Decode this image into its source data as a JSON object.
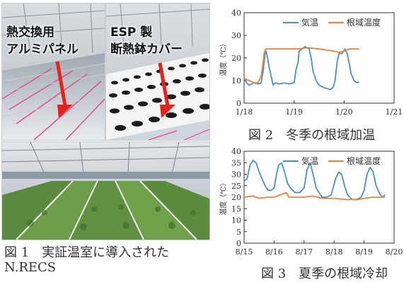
{
  "photos": {
    "panel_label_line1": "熱交換用",
    "panel_label_line2": "アルミパネル",
    "cover_label_line1": "ESP 製",
    "cover_label_line2": "断熱鉢カバー"
  },
  "captions": {
    "fig1_line1": "図 1　実証温室に導入された",
    "fig1_line2": "N.RECS",
    "fig2": "図 2　冬季の根域加温",
    "fig3": "図 3　夏季の根域冷却"
  },
  "chart_data": [
    {
      "id": "winter",
      "type": "line",
      "ylabel": "温度（℃）",
      "ylim": [
        0,
        40
      ],
      "yticks": [
        0,
        10,
        20,
        30,
        40
      ],
      "xlim": [
        0,
        3
      ],
      "xticks": [
        {
          "x": 0,
          "label": "1/18"
        },
        {
          "x": 1,
          "label": "1/19"
        },
        {
          "x": 2,
          "label": "1/20"
        },
        {
          "x": 3,
          "label": "1/21"
        }
      ],
      "legend": "top",
      "series": [
        {
          "name": "気温",
          "color": "#4a90c8",
          "points": [
            [
              0,
              11
            ],
            [
              0.05,
              9
            ],
            [
              0.1,
              8
            ],
            [
              0.2,
              9
            ],
            [
              0.28,
              8.5
            ],
            [
              0.34,
              9
            ],
            [
              0.38,
              14
            ],
            [
              0.42,
              22
            ],
            [
              0.44,
              23
            ],
            [
              0.47,
              20
            ],
            [
              0.5,
              16
            ],
            [
              0.54,
              12
            ],
            [
              0.58,
              8
            ],
            [
              0.62,
              9
            ],
            [
              0.7,
              8.5
            ],
            [
              0.8,
              9
            ],
            [
              0.9,
              8.5
            ],
            [
              0.98,
              9
            ],
            [
              1.0,
              9
            ],
            [
              1.04,
              15
            ],
            [
              1.08,
              18
            ],
            [
              1.1,
              23
            ],
            [
              1.16,
              24
            ],
            [
              1.22,
              25
            ],
            [
              1.3,
              24
            ],
            [
              1.34,
              20
            ],
            [
              1.38,
              14
            ],
            [
              1.44,
              10
            ],
            [
              1.5,
              8
            ],
            [
              1.58,
              7
            ],
            [
              1.66,
              6.5
            ],
            [
              1.72,
              6
            ],
            [
              1.78,
              7
            ],
            [
              1.82,
              10
            ],
            [
              1.86,
              18
            ],
            [
              1.9,
              22
            ],
            [
              1.96,
              22
            ],
            [
              2.02,
              24
            ],
            [
              2.06,
              22
            ],
            [
              2.1,
              18
            ],
            [
              2.14,
              13
            ],
            [
              2.2,
              10
            ],
            [
              2.26,
              9
            ],
            [
              2.3,
              9.5
            ]
          ]
        },
        {
          "name": "根域温度",
          "color": "#e8843c",
          "points": [
            [
              0,
              11
            ],
            [
              0.1,
              10
            ],
            [
              0.2,
              9
            ],
            [
              0.28,
              9
            ],
            [
              0.34,
              12
            ],
            [
              0.38,
              18
            ],
            [
              0.4,
              22
            ],
            [
              0.43,
              24
            ],
            [
              0.6,
              24
            ],
            [
              0.9,
              24
            ],
            [
              1.1,
              24
            ],
            [
              1.25,
              24.5
            ],
            [
              1.5,
              24
            ],
            [
              1.8,
              23
            ],
            [
              1.9,
              22.5
            ],
            [
              2.0,
              23
            ],
            [
              2.1,
              24
            ],
            [
              2.3,
              24
            ]
          ]
        }
      ]
    },
    {
      "id": "summer",
      "type": "line",
      "ylabel": "温度（℃）",
      "ylim": [
        0,
        40
      ],
      "yticks": [
        0,
        5,
        10,
        15,
        20,
        25,
        30,
        35,
        40
      ],
      "xlim": [
        0,
        5
      ],
      "xticks": [
        {
          "x": 0,
          "label": "8/15"
        },
        {
          "x": 1,
          "label": "8/16"
        },
        {
          "x": 2,
          "label": "8/17"
        },
        {
          "x": 3,
          "label": "8/18"
        },
        {
          "x": 4,
          "label": "8/19"
        },
        {
          "x": 5,
          "label": "8/20"
        }
      ],
      "legend": "top",
      "series": [
        {
          "name": "気温",
          "color": "#4a90c8",
          "points": [
            [
              0,
              27
            ],
            [
              0.1,
              28
            ],
            [
              0.2,
              34
            ],
            [
              0.3,
              36
            ],
            [
              0.4,
              35
            ],
            [
              0.5,
              31
            ],
            [
              0.6,
              28
            ],
            [
              0.7,
              25
            ],
            [
              0.8,
              23
            ],
            [
              0.9,
              23
            ],
            [
              1.0,
              24
            ],
            [
              1.08,
              30
            ],
            [
              1.15,
              34
            ],
            [
              1.25,
              35
            ],
            [
              1.35,
              31
            ],
            [
              1.45,
              26
            ],
            [
              1.55,
              24
            ],
            [
              1.7,
              22
            ],
            [
              1.85,
              22
            ],
            [
              2.0,
              24
            ],
            [
              2.1,
              32
            ],
            [
              2.2,
              35
            ],
            [
              2.3,
              30
            ],
            [
              2.4,
              24
            ],
            [
              2.5,
              22
            ],
            [
              2.6,
              20
            ],
            [
              2.75,
              20
            ],
            [
              2.9,
              21
            ],
            [
              3.05,
              28
            ],
            [
              3.15,
              31
            ],
            [
              3.25,
              30
            ],
            [
              3.35,
              25
            ],
            [
              3.45,
              21
            ],
            [
              3.6,
              19
            ],
            [
              3.75,
              19
            ],
            [
              3.9,
              20
            ],
            [
              4.0,
              23
            ],
            [
              4.1,
              30
            ],
            [
              4.2,
              33
            ],
            [
              4.3,
              31
            ],
            [
              4.4,
              25
            ],
            [
              4.5,
              22
            ],
            [
              4.6,
              20
            ],
            [
              4.7,
              21
            ]
          ]
        },
        {
          "name": "根域温度",
          "color": "#e8843c",
          "points": [
            [
              0,
              20
            ],
            [
              0.3,
              20.5
            ],
            [
              0.5,
              19.5
            ],
            [
              0.8,
              20
            ],
            [
              1.0,
              20
            ],
            [
              1.2,
              21
            ],
            [
              1.4,
              22
            ],
            [
              1.5,
              20
            ],
            [
              1.8,
              20
            ],
            [
              2.0,
              20
            ],
            [
              2.3,
              20.5
            ],
            [
              2.6,
              19.5
            ],
            [
              3.0,
              19.5
            ],
            [
              3.4,
              19
            ],
            [
              3.8,
              19
            ],
            [
              4.0,
              19.5
            ],
            [
              4.3,
              20
            ],
            [
              4.7,
              20
            ]
          ]
        }
      ]
    }
  ]
}
